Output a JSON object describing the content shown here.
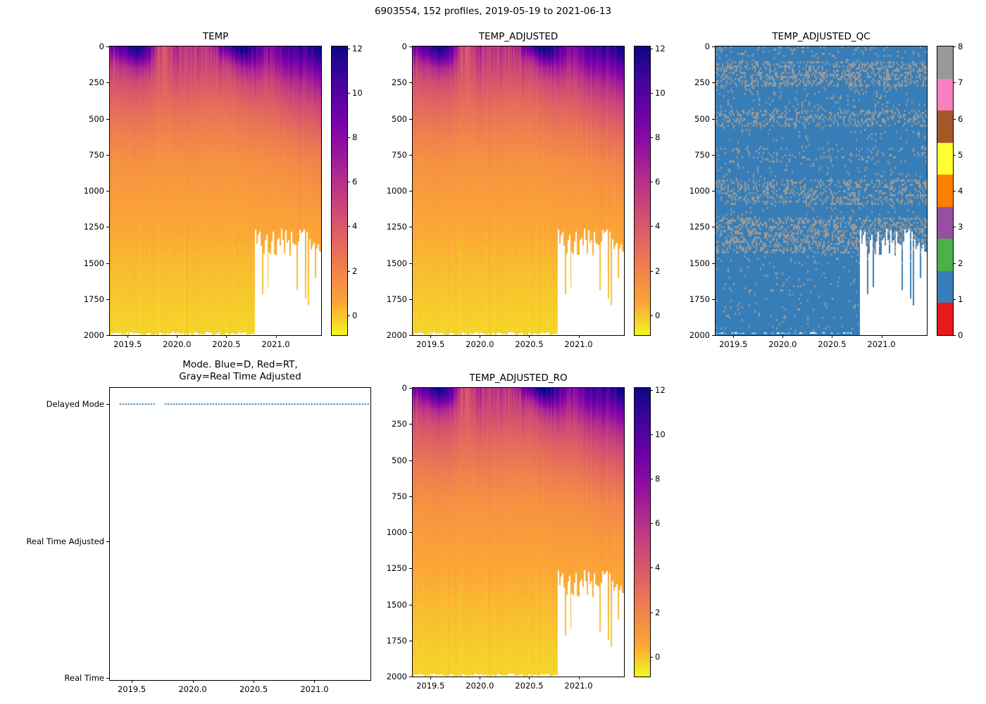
{
  "figure_title": "6903554, 152 profiles, 2019-05-19 to 2021-06-13",
  "colors": {
    "qc_flags": [
      "#e41a1c",
      "#377eb8",
      "#4daf4a",
      "#984ea3",
      "#ff7f00",
      "#ffff33",
      "#a65628",
      "#f781bf",
      "#999999"
    ],
    "mode_line": "#1f77b4",
    "missing_data": "#ffffff",
    "axis": "#000000"
  },
  "temperature_grid": {
    "times": [
      2019.4,
      2019.5,
      2019.6,
      2019.7,
      2019.8,
      2019.9,
      2020.0,
      2020.1,
      2020.2,
      2020.3,
      2020.4,
      2020.5,
      2020.6,
      2020.7,
      2020.8,
      2020.9,
      2021.0,
      2021.1,
      2021.2,
      2021.3,
      2021.4
    ],
    "depths": [
      0,
      40,
      90,
      150,
      250,
      400,
      600,
      800,
      1100,
      1500,
      2000
    ],
    "values": [
      [
        9.0,
        11.0,
        12.0,
        10.0,
        5.0,
        4.5,
        6.5,
        6.0,
        5.5,
        6.0,
        7.0,
        10.0,
        12.0,
        12.5,
        10.0,
        8.5,
        9.0,
        10.0,
        10.5,
        11.0,
        12.0
      ],
      [
        8.0,
        10.0,
        11.0,
        9.5,
        4.8,
        4.4,
        6.2,
        5.8,
        5.3,
        5.6,
        6.2,
        8.5,
        10.5,
        11.5,
        9.5,
        8.0,
        8.5,
        9.5,
        10.0,
        10.5,
        11.5
      ],
      [
        6.5,
        8.0,
        9.0,
        8.0,
        4.5,
        4.2,
        5.8,
        5.4,
        5.0,
        5.2,
        5.4,
        6.5,
        8.0,
        9.5,
        8.5,
        7.2,
        7.8,
        8.8,
        9.2,
        9.5,
        10.5
      ],
      [
        5.2,
        6.0,
        6.5,
        6.0,
        4.2,
        4.0,
        5.2,
        5.0,
        4.7,
        4.8,
        4.8,
        5.2,
        6.0,
        7.0,
        7.0,
        6.2,
        6.8,
        7.5,
        8.0,
        8.2,
        9.0
      ],
      [
        4.2,
        4.4,
        4.6,
        4.4,
        3.8,
        3.6,
        4.3,
        4.2,
        4.0,
        4.0,
        4.0,
        4.2,
        4.4,
        5.0,
        5.2,
        4.8,
        5.2,
        5.8,
        6.2,
        6.4,
        7.0
      ],
      [
        3.2,
        3.3,
        3.4,
        3.3,
        3.0,
        2.9,
        3.2,
        3.1,
        3.0,
        3.0,
        3.0,
        3.1,
        3.2,
        3.5,
        3.6,
        3.5,
        3.8,
        4.2,
        4.5,
        4.6,
        5.0
      ],
      [
        2.2,
        2.2,
        2.3,
        2.2,
        2.1,
        2.0,
        2.2,
        2.1,
        2.1,
        2.1,
        2.1,
        2.1,
        2.2,
        2.3,
        2.4,
        2.4,
        2.5,
        2.7,
        2.9,
        3.0,
        3.2
      ],
      [
        1.4,
        1.4,
        1.5,
        1.4,
        1.4,
        1.3,
        1.4,
        1.4,
        1.4,
        1.4,
        1.4,
        1.4,
        1.4,
        1.5,
        1.5,
        1.5,
        1.6,
        1.7,
        1.8,
        1.9,
        2.0
      ],
      [
        0.8,
        0.8,
        0.8,
        0.8,
        0.8,
        0.8,
        0.8,
        0.8,
        0.8,
        0.8,
        0.8,
        0.8,
        0.8,
        0.8,
        0.9,
        0.9,
        0.9,
        0.9,
        1.0,
        1.0,
        1.0
      ],
      [
        0.2,
        0.2,
        0.2,
        0.2,
        0.2,
        0.2,
        0.2,
        0.2,
        0.2,
        0.2,
        0.2,
        0.2,
        0.2,
        0.2,
        0.2,
        0.2,
        0.2,
        0.2,
        0.2,
        0.2,
        0.2
      ],
      [
        -0.3,
        -0.3,
        -0.3,
        -0.3,
        -0.3,
        -0.3,
        -0.3,
        -0.3,
        -0.3,
        -0.3,
        -0.3,
        -0.3,
        -0.3,
        -0.3,
        -0.3,
        -0.3,
        -0.3,
        -0.3,
        -0.3,
        -0.3,
        -0.3
      ]
    ]
  },
  "chart_data": [
    {
      "id": "temp",
      "type": "heatmap",
      "title": "TEMP",
      "xlim": [
        2019.32,
        2021.46
      ],
      "ylim": [
        0,
        2000
      ],
      "x_ticks": [
        2019.5,
        2020.0,
        2020.5,
        2021.0
      ],
      "x_tick_labels": [
        "2019.5",
        "2020.0",
        "2020.5",
        "2021.0"
      ],
      "y_ticks": [
        0,
        250,
        500,
        750,
        1000,
        1250,
        1500,
        1750,
        2000
      ],
      "colormap": "plasma_reversed",
      "vmin": -0.9,
      "vmax": 12.1,
      "colorbar_ticks": [
        0,
        2,
        4,
        6,
        8,
        10,
        12
      ],
      "n_profiles": 152,
      "missing": {
        "after_time": 2020.78,
        "min_depth": 1260,
        "jitter": 190
      },
      "grid_ref": "temperature_grid"
    },
    {
      "id": "temp_adjusted",
      "type": "heatmap",
      "title": "TEMP_ADJUSTED",
      "xlim": [
        2019.32,
        2021.46
      ],
      "ylim": [
        0,
        2000
      ],
      "x_ticks": [
        2019.5,
        2020.0,
        2020.5,
        2021.0
      ],
      "x_tick_labels": [
        "2019.5",
        "2020.0",
        "2020.5",
        "2021.0"
      ],
      "y_ticks": [
        0,
        250,
        500,
        750,
        1000,
        1250,
        1500,
        1750,
        2000
      ],
      "colormap": "plasma_reversed",
      "vmin": -0.9,
      "vmax": 12.1,
      "colorbar_ticks": [
        0,
        2,
        4,
        6,
        8,
        10,
        12
      ],
      "n_profiles": 152,
      "missing": {
        "after_time": 2020.78,
        "min_depth": 1260,
        "jitter": 190
      },
      "grid_ref": "temperature_grid"
    },
    {
      "id": "temp_adjusted_qc",
      "type": "heatmap_flags",
      "title": "TEMP_ADJUSTED_QC",
      "xlim": [
        2019.32,
        2021.46
      ],
      "ylim": [
        0,
        2000
      ],
      "x_ticks": [
        2019.5,
        2020.0,
        2020.5,
        2021.0
      ],
      "x_tick_labels": [
        "2019.5",
        "2020.0",
        "2020.5",
        "2021.0"
      ],
      "y_ticks": [
        0,
        250,
        500,
        750,
        1000,
        1250,
        1500,
        1750,
        2000
      ],
      "colorbar_ticks": [
        0,
        1,
        2,
        3,
        4,
        5,
        6,
        7,
        8
      ],
      "n_profiles": 152,
      "missing": {
        "after_time": 2020.78,
        "min_depth": 1260,
        "jitter": 190
      },
      "flags": {
        "base": 1,
        "speckle": 8,
        "background_prob": 0.045,
        "bands": [
          {
            "depths": [
              0,
              60
            ],
            "prob": 0.1
          },
          {
            "depths": [
              90,
              270
            ],
            "prob": 0.38
          },
          {
            "depths": [
              270,
              430
            ],
            "prob": 0.08
          },
          {
            "depths": [
              430,
              550
            ],
            "prob": 0.3
          },
          {
            "depths": [
              700,
              800
            ],
            "prob": 0.15
          },
          {
            "depths": [
              920,
              1090
            ],
            "prob": 0.32
          },
          {
            "depths": [
              1180,
              1430
            ],
            "prob": 0.38
          }
        ]
      }
    },
    {
      "id": "mode",
      "type": "dotted_line",
      "title_lines": [
        "Mode. Blue=D, Red=RT,",
        "Gray=Real Time Adjusted"
      ],
      "xlim": [
        2019.32,
        2021.46
      ],
      "x_ticks": [
        2019.5,
        2020.0,
        2020.5,
        2021.0
      ],
      "x_tick_labels": [
        "2019.5",
        "2020.0",
        "2020.5",
        "2021.0"
      ],
      "y_categories": [
        "Delayed Mode",
        "Real Time Adjusted",
        "Real Time"
      ],
      "line_category": "Delayed Mode",
      "segments": [
        [
          2019.4,
          2019.69
        ],
        [
          2019.77,
          2021.44
        ]
      ]
    },
    {
      "id": "temp_adjusted_ro",
      "type": "heatmap",
      "title": "TEMP_ADJUSTED_RO",
      "xlim": [
        2019.32,
        2021.46
      ],
      "ylim": [
        0,
        2000
      ],
      "x_ticks": [
        2019.5,
        2020.0,
        2020.5,
        2021.0
      ],
      "x_tick_labels": [
        "2019.5",
        "2020.0",
        "2020.5",
        "2021.0"
      ],
      "y_ticks": [
        0,
        250,
        500,
        750,
        1000,
        1250,
        1500,
        1750,
        2000
      ],
      "colormap": "plasma_reversed",
      "vmin": -0.9,
      "vmax": 12.1,
      "colorbar_ticks": [
        0,
        2,
        4,
        6,
        8,
        10,
        12
      ],
      "n_profiles": 152,
      "missing": {
        "after_time": 2020.78,
        "min_depth": 1260,
        "jitter": 190
      },
      "grid_ref": "temperature_grid"
    }
  ]
}
